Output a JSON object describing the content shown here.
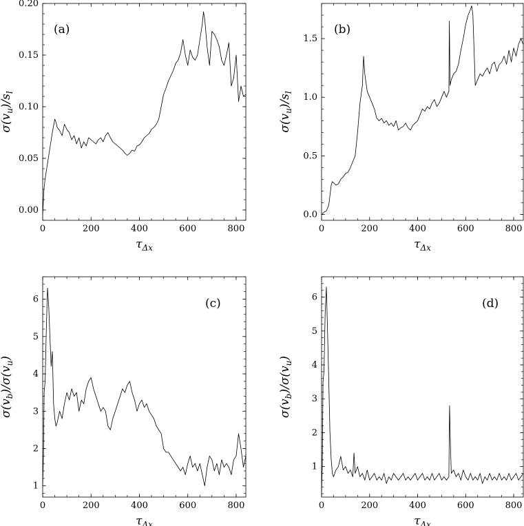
{
  "chart_data": [
    {
      "type": "line",
      "panel_label": "(a)",
      "xlabel": "τΔx",
      "ylabel": "σ(vu)/sl",
      "xlim": [
        0,
        840
      ],
      "ylim": [
        -0.01,
        0.2
      ],
      "xticks": [
        0,
        200,
        400,
        600,
        800
      ],
      "yticks": [
        0.0,
        0.05,
        0.1,
        0.15,
        0.2
      ],
      "ytick_labels": [
        "0.00",
        "0.05",
        "0.10",
        "0.15",
        "0.20"
      ],
      "series": [
        {
          "x": [
            0,
            5,
            10,
            20,
            30,
            40,
            50,
            55,
            60,
            70,
            80,
            90,
            100,
            110,
            120,
            130,
            140,
            150,
            160,
            170,
            180,
            190,
            200,
            210,
            220,
            230,
            240,
            250,
            260,
            270,
            280,
            290,
            300,
            310,
            320,
            330,
            340,
            350,
            360,
            370,
            380,
            390,
            400,
            410,
            420,
            430,
            440,
            450,
            460,
            470,
            480,
            490,
            500,
            510,
            520,
            530,
            540,
            550,
            560,
            570,
            580,
            590,
            600,
            610,
            620,
            630,
            640,
            650,
            660,
            665,
            670,
            680,
            690,
            700,
            710,
            720,
            730,
            740,
            750,
            760,
            770,
            780,
            790,
            800,
            810,
            820,
            830,
            840
          ],
          "y": [
            -0.005,
            0.02,
            0.03,
            0.045,
            0.06,
            0.075,
            0.088,
            0.085,
            0.08,
            0.077,
            0.072,
            0.083,
            0.078,
            0.075,
            0.068,
            0.072,
            0.064,
            0.07,
            0.06,
            0.066,
            0.062,
            0.07,
            0.068,
            0.066,
            0.064,
            0.068,
            0.07,
            0.066,
            0.072,
            0.075,
            0.07,
            0.066,
            0.064,
            0.062,
            0.06,
            0.058,
            0.055,
            0.053,
            0.055,
            0.058,
            0.057,
            0.062,
            0.063,
            0.066,
            0.07,
            0.072,
            0.074,
            0.078,
            0.08,
            0.083,
            0.088,
            0.1,
            0.112,
            0.118,
            0.125,
            0.13,
            0.135,
            0.142,
            0.145,
            0.152,
            0.165,
            0.15,
            0.14,
            0.155,
            0.148,
            0.145,
            0.15,
            0.165,
            0.18,
            0.192,
            0.185,
            0.158,
            0.14,
            0.173,
            0.17,
            0.165,
            0.158,
            0.145,
            0.14,
            0.15,
            0.162,
            0.12,
            0.128,
            0.15,
            0.105,
            0.12,
            0.11,
            0.112
          ]
        }
      ]
    },
    {
      "type": "line",
      "panel_label": "(b)",
      "xlabel": "τΔx",
      "ylabel": "σ(vu)/sl",
      "xlim": [
        0,
        840
      ],
      "ylim": [
        -0.05,
        1.8
      ],
      "xticks": [
        0,
        200,
        400,
        600,
        800
      ],
      "yticks": [
        0.0,
        0.5,
        1.0,
        1.5
      ],
      "ytick_labels": [
        "0.0",
        "0.5",
        "1.0",
        "1.5"
      ],
      "series": [
        {
          "x": [
            0,
            10,
            20,
            30,
            40,
            45,
            50,
            60,
            70,
            80,
            90,
            100,
            110,
            120,
            130,
            140,
            150,
            160,
            170,
            175,
            180,
            190,
            200,
            210,
            220,
            230,
            240,
            250,
            260,
            270,
            280,
            290,
            300,
            310,
            320,
            330,
            340,
            350,
            360,
            370,
            380,
            390,
            400,
            410,
            420,
            430,
            440,
            450,
            460,
            470,
            480,
            490,
            500,
            510,
            520,
            530,
            532,
            535,
            540,
            550,
            560,
            570,
            580,
            590,
            600,
            610,
            620,
            625,
            630,
            640,
            650,
            660,
            670,
            680,
            690,
            700,
            710,
            720,
            730,
            740,
            750,
            760,
            770,
            780,
            790,
            800,
            810,
            820,
            830,
            840
          ],
          "y": [
            0.0,
            0.02,
            0.03,
            0.08,
            0.25,
            0.28,
            0.27,
            0.25,
            0.26,
            0.3,
            0.32,
            0.35,
            0.36,
            0.4,
            0.45,
            0.5,
            0.7,
            0.95,
            1.1,
            1.35,
            1.2,
            1.05,
            1.0,
            0.95,
            0.9,
            0.82,
            0.8,
            0.82,
            0.78,
            0.8,
            0.76,
            0.78,
            0.75,
            0.8,
            0.72,
            0.74,
            0.75,
            0.78,
            0.74,
            0.72,
            0.76,
            0.78,
            0.8,
            0.85,
            0.9,
            0.88,
            0.92,
            0.9,
            0.95,
            0.98,
            0.92,
            0.95,
            1.0,
            1.05,
            1.0,
            1.05,
            1.65,
            1.1,
            1.15,
            1.2,
            1.22,
            1.28,
            1.4,
            1.5,
            1.62,
            1.7,
            1.75,
            1.78,
            1.7,
            1.1,
            1.15,
            1.2,
            1.18,
            1.22,
            1.25,
            1.2,
            1.28,
            1.3,
            1.22,
            1.28,
            1.3,
            1.35,
            1.28,
            1.4,
            1.3,
            1.42,
            1.35,
            1.45,
            1.5,
            1.45
          ]
        }
      ]
    },
    {
      "type": "line",
      "panel_label": "(c)",
      "xlabel": "τΔx",
      "ylabel": "σ(vb)/σ(vu)",
      "xlim": [
        0,
        840
      ],
      "ylim": [
        0.7,
        6.6
      ],
      "xticks": [
        0,
        200,
        400,
        600,
        800
      ],
      "yticks": [
        1,
        2,
        3,
        4,
        5,
        6
      ],
      "ytick_labels": [
        "1",
        "2",
        "3",
        "4",
        "5",
        "6"
      ],
      "series": [
        {
          "x": [
            0,
            3,
            6,
            10,
            15,
            20,
            25,
            30,
            35,
            40,
            45,
            50,
            55,
            60,
            70,
            80,
            90,
            100,
            110,
            120,
            130,
            140,
            150,
            160,
            170,
            180,
            190,
            200,
            210,
            220,
            230,
            240,
            250,
            260,
            270,
            280,
            290,
            300,
            310,
            320,
            330,
            340,
            350,
            360,
            370,
            380,
            390,
            400,
            410,
            420,
            430,
            440,
            450,
            460,
            470,
            480,
            490,
            500,
            510,
            520,
            530,
            540,
            550,
            560,
            570,
            580,
            590,
            600,
            610,
            620,
            630,
            640,
            650,
            660,
            670,
            680,
            690,
            700,
            710,
            720,
            730,
            740,
            750,
            760,
            770,
            780,
            790,
            800,
            810,
            820,
            830,
            840
          ],
          "y": [
            1.0,
            1.8,
            3.5,
            3.8,
            5.2,
            6.3,
            5.8,
            5.0,
            4.2,
            4.6,
            3.2,
            2.8,
            2.6,
            2.7,
            3.0,
            2.8,
            3.2,
            3.5,
            3.3,
            3.6,
            3.4,
            3.5,
            3.0,
            3.3,
            3.2,
            3.6,
            3.8,
            3.9,
            3.6,
            3.4,
            3.2,
            3.0,
            3.1,
            3.0,
            2.6,
            2.5,
            2.8,
            3.0,
            3.2,
            3.4,
            3.6,
            3.5,
            3.7,
            3.8,
            3.5,
            3.3,
            3.0,
            3.2,
            3.3,
            3.1,
            3.2,
            3.0,
            2.9,
            2.8,
            2.6,
            2.5,
            2.4,
            2.0,
            1.9,
            1.9,
            1.8,
            1.7,
            1.6,
            1.5,
            1.4,
            1.5,
            1.3,
            1.6,
            1.8,
            1.5,
            1.6,
            1.4,
            1.6,
            1.3,
            1.0,
            1.5,
            1.8,
            1.7,
            1.4,
            1.6,
            1.3,
            1.7,
            1.5,
            1.6,
            1.5,
            1.3,
            1.7,
            1.8,
            2.4,
            2.0,
            1.5,
            1.8
          ]
        }
      ]
    },
    {
      "type": "line",
      "panel_label": "(d)",
      "xlabel": "τΔx",
      "ylabel": "σ(vb)/σ(vu)",
      "xlim": [
        0,
        840
      ],
      "ylim": [
        0.1,
        6.6
      ],
      "xticks": [
        0,
        200,
        400,
        600,
        800
      ],
      "yticks": [
        1,
        2,
        3,
        4,
        5,
        6
      ],
      "ytick_labels": [
        "1",
        "2",
        "3",
        "4",
        "5",
        "6"
      ],
      "series": [
        {
          "x": [
            0,
            3,
            6,
            10,
            15,
            20,
            25,
            30,
            35,
            40,
            45,
            50,
            60,
            70,
            80,
            90,
            100,
            110,
            120,
            130,
            135,
            140,
            150,
            160,
            170,
            180,
            190,
            200,
            210,
            220,
            230,
            240,
            250,
            260,
            270,
            280,
            290,
            300,
            310,
            320,
            330,
            340,
            350,
            360,
            370,
            380,
            390,
            400,
            410,
            420,
            430,
            440,
            450,
            460,
            470,
            480,
            490,
            500,
            510,
            520,
            530,
            533,
            536,
            540,
            550,
            560,
            570,
            580,
            590,
            600,
            610,
            620,
            630,
            640,
            650,
            660,
            670,
            680,
            690,
            700,
            710,
            720,
            730,
            740,
            750,
            760,
            770,
            780,
            790,
            800,
            810,
            820,
            830,
            840
          ],
          "y": [
            0.2,
            1.0,
            3.5,
            3.8,
            5.5,
            6.3,
            5.0,
            3.5,
            2.0,
            1.2,
            0.8,
            0.7,
            0.9,
            1.0,
            1.3,
            0.9,
            1.0,
            0.8,
            0.9,
            0.7,
            1.4,
            0.8,
            1.0,
            0.7,
            0.8,
            0.6,
            0.9,
            0.6,
            0.7,
            0.8,
            0.6,
            0.7,
            0.6,
            0.8,
            0.5,
            0.7,
            0.6,
            0.8,
            0.7,
            0.6,
            0.7,
            0.8,
            0.6,
            0.7,
            0.6,
            0.7,
            0.8,
            0.6,
            0.7,
            0.8,
            0.6,
            0.7,
            0.6,
            0.8,
            0.6,
            0.7,
            0.8,
            0.6,
            0.7,
            0.6,
            0.7,
            2.8,
            1.8,
            0.8,
            0.9,
            0.7,
            0.8,
            0.6,
            0.9,
            0.7,
            0.6,
            0.8,
            0.6,
            0.7,
            0.6,
            0.8,
            0.5,
            0.7,
            0.6,
            0.8,
            0.6,
            0.7,
            0.6,
            0.8,
            0.6,
            0.7,
            0.6,
            0.8,
            0.6,
            0.7,
            0.8,
            0.6,
            0.7,
            0.8
          ]
        }
      ]
    }
  ]
}
